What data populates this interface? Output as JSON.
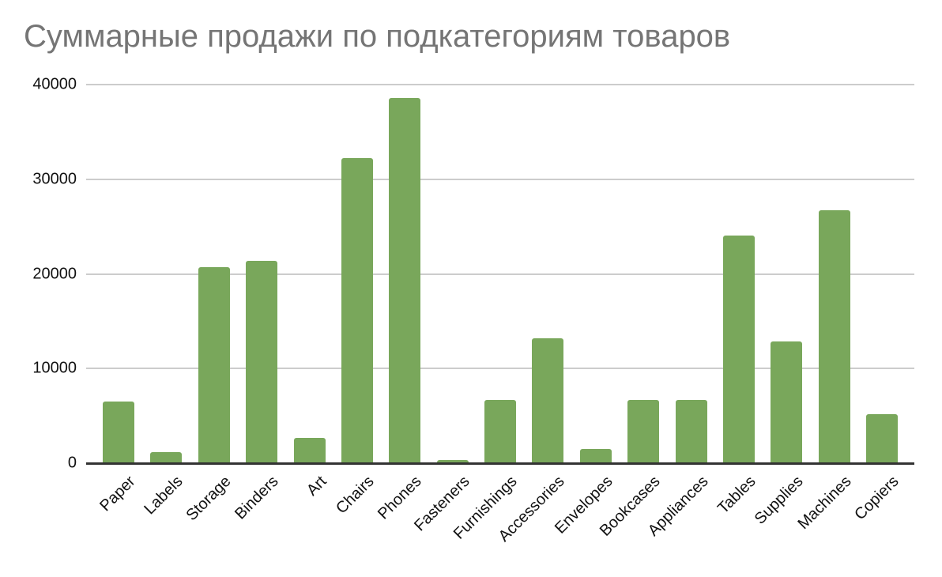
{
  "chart_data": {
    "type": "bar",
    "title": "Суммарные продажи по подкатегориям товаров",
    "xlabel": "",
    "ylabel": "",
    "ylim": [
      0,
      40000
    ],
    "yticks": [
      "0",
      "10000",
      "20000",
      "30000",
      "40000"
    ],
    "grid": true,
    "legend": null,
    "bar_color": "#79a75b",
    "categories": [
      "Paper",
      "Labels",
      "Storage",
      "Binders",
      "Art",
      "Chairs",
      "Phones",
      "Fasteners",
      "Furnishings",
      "Accessories",
      "Envelopes",
      "Bookcases",
      "Appliances",
      "Tables",
      "Supplies",
      "Machines",
      "Copiers"
    ],
    "values": [
      6510,
      1170,
      20710,
      21380,
      2670,
      32230,
      38580,
      330,
      6680,
      13190,
      1500,
      6680,
      6680,
      24050,
      12860,
      26720,
      5180
    ]
  }
}
